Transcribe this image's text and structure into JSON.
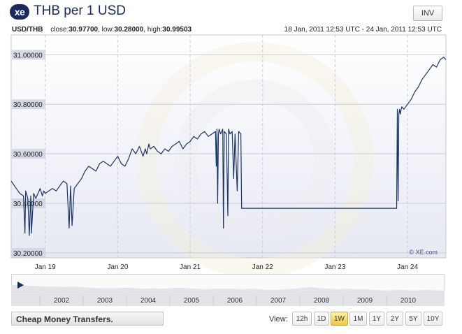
{
  "header": {
    "logo_text": "xe",
    "title": "THB per 1 USD",
    "inv_label": "INV"
  },
  "info": {
    "pair": "USD/THB",
    "close_label": "close:",
    "close_value": "30.97700",
    "low_label": "low:",
    "low_value": "30.28000",
    "high_label": "high:",
    "high_value": "30.99503",
    "date_range": "18 Jan, 2011 12:53 UTC - 24 Jan, 2011 12:53 UTC"
  },
  "watermark": "© XE.com",
  "chart_data": {
    "type": "line",
    "title": "THB per 1 USD",
    "xlabel": "",
    "ylabel": "",
    "ylim": [
      30.18,
      31.08
    ],
    "yticks": [
      "30.20000",
      "30.40000",
      "30.60000",
      "30.80000",
      "31.00000"
    ],
    "ytick_values": [
      30.2,
      30.4,
      30.6,
      30.8,
      31.0
    ],
    "xlim": [
      18.53,
      24.53
    ],
    "xticks": [
      "Jan 19",
      "Jan 20",
      "Jan 21",
      "Jan 22",
      "Jan 23",
      "Jan 24"
    ],
    "xtick_values": [
      19,
      20,
      21,
      22,
      23,
      24
    ],
    "grid": true,
    "series": [
      {
        "color": "#1b3468",
        "x": [
          18.53,
          18.6,
          18.65,
          18.7,
          18.72,
          18.73,
          18.76,
          18.78,
          18.8,
          18.81,
          18.84,
          18.87,
          18.9,
          18.93,
          18.96,
          18.98,
          19.0,
          19.05,
          19.1,
          19.15,
          19.2,
          19.25,
          19.3,
          19.33,
          19.35,
          19.37,
          19.4,
          19.45,
          19.5,
          19.55,
          19.6,
          19.65,
          19.7,
          19.75,
          19.8,
          19.85,
          19.9,
          19.95,
          20.0,
          20.05,
          20.1,
          20.15,
          20.2,
          20.25,
          20.3,
          20.35,
          20.38,
          20.4,
          20.43,
          20.45,
          20.5,
          20.55,
          20.6,
          20.65,
          20.7,
          20.75,
          20.8,
          20.85,
          20.9,
          20.95,
          21.0,
          21.05,
          21.1,
          21.15,
          21.2,
          21.25,
          21.3,
          21.35,
          21.36,
          21.37,
          21.38,
          21.39,
          21.4,
          21.42,
          21.45,
          21.46,
          21.47,
          21.5,
          21.52,
          21.53,
          21.55,
          21.58,
          21.6,
          21.62,
          21.65,
          21.67,
          21.7,
          21.71,
          21.72,
          21.73,
          22.0,
          22.5,
          23.0,
          23.5,
          23.8,
          23.85,
          23.86,
          23.87,
          23.88,
          23.89,
          23.9,
          23.92,
          23.95,
          24.0,
          24.05,
          24.1,
          24.15,
          24.2,
          24.25,
          24.3,
          24.35,
          24.4,
          24.45,
          24.5,
          24.53
        ],
        "y": [
          30.49,
          30.46,
          30.44,
          30.43,
          30.28,
          30.45,
          30.42,
          30.27,
          30.43,
          30.28,
          30.44,
          30.42,
          30.44,
          30.46,
          30.43,
          30.45,
          30.44,
          30.45,
          30.46,
          30.45,
          30.47,
          30.49,
          30.48,
          30.3,
          30.47,
          30.31,
          30.46,
          30.48,
          30.5,
          30.53,
          30.55,
          30.54,
          30.53,
          30.56,
          30.57,
          30.56,
          30.55,
          30.57,
          30.59,
          30.56,
          30.55,
          30.58,
          30.62,
          30.6,
          30.63,
          30.59,
          30.62,
          30.6,
          30.64,
          30.62,
          30.63,
          30.61,
          30.6,
          30.62,
          30.61,
          30.63,
          30.64,
          30.65,
          30.62,
          30.64,
          30.65,
          30.67,
          30.66,
          30.68,
          30.69,
          30.67,
          30.68,
          30.69,
          30.55,
          30.7,
          30.4,
          30.68,
          30.7,
          30.68,
          30.7,
          30.3,
          30.69,
          30.68,
          30.35,
          30.7,
          30.68,
          30.69,
          30.5,
          30.68,
          30.45,
          30.69,
          30.68,
          30.38,
          30.38,
          30.38,
          30.38,
          30.38,
          30.38,
          30.38,
          30.38,
          30.38,
          30.78,
          30.41,
          30.76,
          30.78,
          30.76,
          30.79,
          30.78,
          30.8,
          30.82,
          30.85,
          30.87,
          30.9,
          30.92,
          30.94,
          30.96,
          30.95,
          30.98,
          30.99,
          30.98
        ]
      }
    ]
  },
  "navigator": {
    "years": [
      "2002",
      "2003",
      "2004",
      "2005",
      "2006",
      "2007",
      "2008",
      "2009",
      "2010"
    ],
    "profile": [
      40,
      40,
      39,
      38,
      37,
      37,
      36,
      37,
      36,
      35,
      34,
      34,
      34,
      35,
      34,
      33,
      34,
      33,
      34,
      35,
      34,
      33,
      32,
      33,
      33,
      33,
      32,
      33,
      32,
      31,
      31,
      32,
      33,
      35,
      36,
      34,
      33,
      32,
      33,
      32,
      32,
      31,
      30,
      30,
      31,
      30,
      30,
      31,
      30,
      30
    ]
  },
  "footer": {
    "cheap_transfers_label": "Cheap Money Transfers.",
    "view_label": "View:",
    "view_buttons": [
      "12h",
      "1D",
      "1W",
      "1M",
      "1Y",
      "2Y",
      "5Y",
      "10Y"
    ],
    "active_view": "1W"
  }
}
